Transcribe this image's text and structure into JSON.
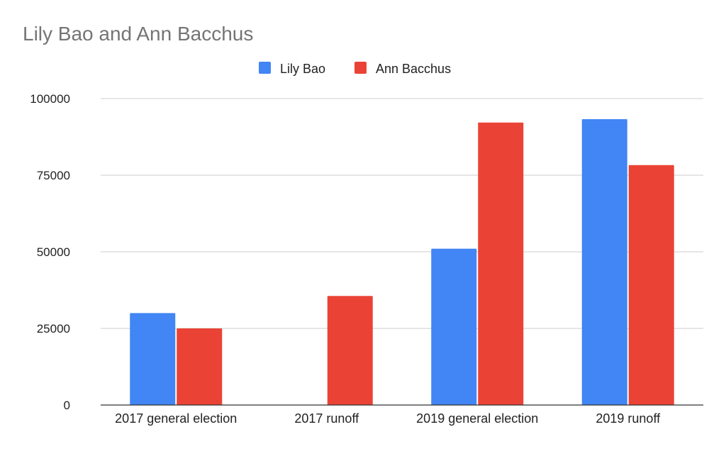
{
  "chart_data": {
    "type": "bar",
    "title": "Lily Bao and Ann Bacchus",
    "categories": [
      "2017 general election",
      "2017 runoff",
      "2019 general election",
      "2019 runoff"
    ],
    "series": [
      {
        "name": "Lily Bao",
        "color": "#4285f4",
        "values": [
          30000,
          null,
          51000,
          93300
        ]
      },
      {
        "name": "Ann Bacchus",
        "color": "#ea4335",
        "values": [
          25000,
          35600,
          92200,
          78300
        ]
      }
    ],
    "y_ticks": [
      "0",
      "25000",
      "50000",
      "75000",
      "100000"
    ],
    "ylim": [
      0,
      100000
    ],
    "legend_position": "top",
    "grid": true
  }
}
